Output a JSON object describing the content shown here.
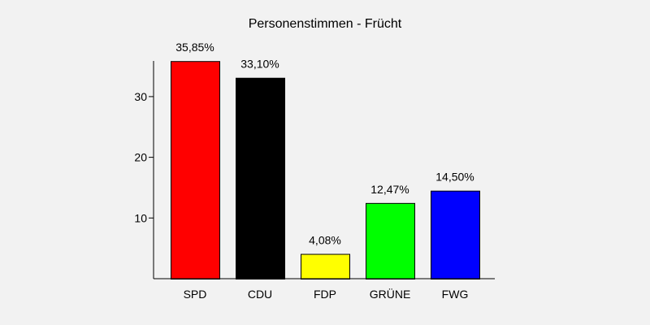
{
  "chart_data": {
    "type": "bar",
    "title": "Personenstimmen - Frücht",
    "categories": [
      "SPD",
      "CDU",
      "FDP",
      "GRÜNE",
      "FWG"
    ],
    "values": [
      35.85,
      33.1,
      4.08,
      12.47,
      14.5
    ],
    "data_labels": [
      "35,85%",
      "33,10%",
      "4,08%",
      "12,47%",
      "14,50%"
    ],
    "colors": [
      "#ff0000",
      "#000000",
      "#ffff00",
      "#00ff00",
      "#0000ff"
    ],
    "y_ticks": [
      10,
      20,
      30
    ],
    "ylim": [
      0,
      36
    ],
    "grid": false,
    "xlabel": "",
    "ylabel": ""
  }
}
